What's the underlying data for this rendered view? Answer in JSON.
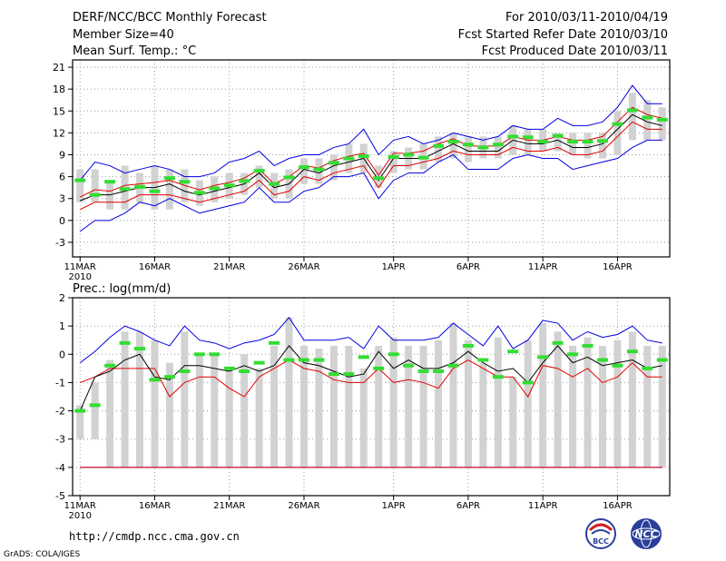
{
  "header": {
    "title": "DERF/NCC/BCC Monthly Forecast",
    "member_size": "Member Size=40",
    "variable": "Mean Surf. Temp.: °C",
    "period": "For 2010/03/11-2010/04/19",
    "started": "Fcst Started Refer Date 2010/03/10",
    "produced": "Fcst Produced Date 2010/03/11"
  },
  "footer": {
    "url": "http://cmdp.ncc.cma.gov.cn",
    "credit": "GrADS: COLA/IGES",
    "logo_left": "BCC",
    "logo_right": "NCC"
  },
  "colors": {
    "box": "#d2d2d2",
    "median": "#000000",
    "spread": "#e00000",
    "extreme": "#0000e0",
    "obs_mark": "#33dd33",
    "grid": "#999999"
  },
  "chart_data": [
    {
      "type": "box-ensemble",
      "title": "Mean Surf. Temp.: °C",
      "ylim": [
        -5,
        22
      ],
      "yticks": [
        -3,
        0,
        3,
        6,
        9,
        12,
        15,
        18,
        21
      ],
      "xtick_days": [
        1,
        6,
        11,
        16,
        22,
        27,
        32,
        37
      ],
      "xtick_labels": [
        "11MAR",
        "16MAR",
        "21MAR",
        "26MAR",
        "1APR",
        "6APR",
        "11APR",
        "16APR"
      ],
      "xyear": "2010",
      "days": [
        1,
        2,
        3,
        4,
        5,
        6,
        7,
        8,
        9,
        10,
        11,
        12,
        13,
        14,
        15,
        16,
        17,
        18,
        19,
        20,
        21,
        22,
        23,
        24,
        25,
        26,
        27,
        28,
        29,
        30,
        31,
        32,
        33,
        34,
        35,
        36,
        37,
        38,
        39,
        40
      ],
      "box_low": [
        2.5,
        2.5,
        1.5,
        1.5,
        2.5,
        1.5,
        1.5,
        2.5,
        2.0,
        2.5,
        3.0,
        3.5,
        4.5,
        3.0,
        3.0,
        5.0,
        5.0,
        5.5,
        6.5,
        6.5,
        4.5,
        6.5,
        7.0,
        7.0,
        8.0,
        8.5,
        8.0,
        8.5,
        8.5,
        9.0,
        9.0,
        9.5,
        9.5,
        9.0,
        8.5,
        8.5,
        9.0,
        11.0,
        11.0,
        11.0
      ],
      "box_high": [
        7.0,
        7.0,
        5.5,
        7.5,
        6.5,
        7.5,
        7.0,
        7.0,
        5.5,
        6.0,
        6.5,
        6.5,
        7.5,
        6.5,
        7.0,
        8.5,
        8.5,
        9.0,
        10.5,
        10.5,
        7.5,
        9.5,
        10.0,
        10.5,
        11.5,
        12.0,
        11.5,
        11.5,
        11.5,
        13.0,
        12.5,
        12.5,
        12.0,
        12.0,
        12.0,
        12.0,
        15.0,
        17.5,
        16.5,
        15.5
      ],
      "median": [
        2.7,
        3.5,
        3.5,
        4.0,
        4.5,
        4.5,
        5.0,
        4.0,
        3.5,
        4.0,
        4.5,
        5.0,
        6.5,
        4.5,
        5.0,
        7.0,
        6.5,
        7.5,
        8.0,
        8.5,
        5.5,
        8.5,
        8.5,
        8.5,
        9.5,
        10.5,
        9.5,
        9.5,
        9.5,
        11.0,
        10.5,
        10.5,
        11.0,
        10.0,
        10.0,
        10.5,
        12.5,
        14.5,
        13.5,
        13.0
      ],
      "upper": [
        3.2,
        4.2,
        4.0,
        4.8,
        5.0,
        5.2,
        5.5,
        4.8,
        4.2,
        4.8,
        5.2,
        5.8,
        7.0,
        5.0,
        6.0,
        7.5,
        7.2,
        8.2,
        8.8,
        9.2,
        6.2,
        9.2,
        9.2,
        9.5,
        10.5,
        11.2,
        10.2,
        10.2,
        10.2,
        11.5,
        11.0,
        11.0,
        11.5,
        11.0,
        11.0,
        11.5,
        13.5,
        15.5,
        14.5,
        14.0
      ],
      "lower": [
        1.5,
        2.5,
        2.5,
        2.5,
        3.5,
        3.5,
        3.5,
        3.0,
        2.5,
        3.0,
        3.5,
        4.0,
        5.5,
        3.5,
        4.0,
        6.0,
        5.5,
        6.5,
        7.0,
        7.5,
        4.5,
        7.5,
        7.5,
        8.0,
        8.5,
        9.5,
        9.0,
        9.0,
        9.0,
        10.0,
        9.5,
        9.5,
        10.0,
        9.0,
        9.0,
        9.5,
        11.5,
        13.5,
        12.5,
        12.5
      ],
      "max": [
        5.5,
        8.0,
        7.5,
        6.5,
        7.0,
        7.5,
        7.0,
        6.0,
        6.0,
        6.5,
        8.0,
        8.5,
        9.5,
        7.5,
        8.5,
        9.0,
        9.0,
        10.0,
        10.5,
        12.5,
        9.0,
        11.0,
        11.5,
        10.5,
        11.0,
        12.0,
        11.5,
        11.0,
        11.5,
        13.0,
        12.5,
        12.5,
        14.0,
        13.0,
        13.0,
        13.5,
        15.5,
        18.5,
        16.0,
        16.0
      ],
      "min": [
        -1.5,
        0.0,
        0.0,
        1.0,
        2.5,
        2.0,
        3.0,
        2.0,
        1.0,
        1.5,
        2.0,
        2.5,
        4.5,
        2.5,
        2.5,
        4.0,
        4.5,
        6.0,
        6.0,
        6.5,
        3.0,
        5.5,
        6.5,
        6.5,
        8.0,
        9.0,
        7.0,
        7.0,
        7.0,
        8.5,
        9.0,
        8.5,
        8.5,
        7.0,
        7.5,
        8.0,
        8.5,
        10.0,
        11.0,
        11.0
      ],
      "obs": [
        5.5,
        3.5,
        5.3,
        4.3,
        4.6,
        4.0,
        5.8,
        5.3,
        3.8,
        4.4,
        4.8,
        5.4,
        6.8,
        5.0,
        5.9,
        7.3,
        7.0,
        7.9,
        8.5,
        8.8,
        5.8,
        8.7,
        9.0,
        8.6,
        10.2,
        10.8,
        10.4,
        10.0,
        10.4,
        11.5,
        11.4,
        10.8,
        11.6,
        10.8,
        10.8,
        10.9,
        13.2,
        15.1,
        14.1,
        13.8
      ]
    },
    {
      "type": "box-ensemble",
      "title": "Prec.: log(mm/d)",
      "ylim": [
        -5,
        2
      ],
      "yticks": [
        -5,
        -4,
        -3,
        -2,
        -1,
        0,
        1,
        2
      ],
      "xtick_days": [
        1,
        6,
        11,
        16,
        22,
        27,
        32,
        37
      ],
      "xtick_labels": [
        "11MAR",
        "16MAR",
        "21MAR",
        "26MAR",
        "1APR",
        "6APR",
        "11APR",
        "16APR"
      ],
      "xyear": "2010",
      "days": [
        1,
        2,
        3,
        4,
        5,
        6,
        7,
        8,
        9,
        10,
        11,
        12,
        13,
        14,
        15,
        16,
        17,
        18,
        19,
        20,
        21,
        22,
        23,
        24,
        25,
        26,
        27,
        28,
        29,
        30,
        31,
        32,
        33,
        34,
        35,
        36,
        37,
        38,
        39,
        40
      ],
      "box_low": [
        -3.0,
        -3.0,
        -4.0,
        -4.0,
        -4.0,
        -4.0,
        -4.0,
        -4.0,
        -4.0,
        -4.0,
        -4.0,
        -4.0,
        -4.0,
        -4.0,
        -4.0,
        -4.0,
        -4.0,
        -4.0,
        -4.0,
        -4.0,
        -4.0,
        -4.0,
        -4.0,
        -4.0,
        -4.0,
        -4.0,
        -4.0,
        -4.0,
        -4.0,
        -4.0,
        -4.0,
        -4.0,
        -4.0,
        -4.0,
        -4.0,
        -4.0,
        -4.0,
        -4.0,
        -4.0,
        -4.0
      ],
      "box_high": [
        -1.8,
        -1.0,
        -0.2,
        0.8,
        0.8,
        0.5,
        -0.3,
        0.8,
        0.0,
        0.0,
        -0.5,
        0.0,
        -0.5,
        0.3,
        1.3,
        0.3,
        0.2,
        0.3,
        0.3,
        -0.5,
        0.3,
        0.6,
        0.3,
        0.3,
        0.5,
        1.1,
        0.5,
        -0.3,
        0.6,
        -0.8,
        0.5,
        1.1,
        0.8,
        0.3,
        0.6,
        0.3,
        0.5,
        0.8,
        0.3,
        0.3
      ],
      "median": [
        -2.0,
        -0.8,
        -0.6,
        -0.2,
        0.0,
        -0.8,
        -0.9,
        -0.4,
        -0.4,
        -0.5,
        -0.6,
        -0.4,
        -0.6,
        -0.4,
        0.3,
        -0.3,
        -0.4,
        -0.6,
        -0.8,
        -0.7,
        0.1,
        -0.5,
        -0.2,
        -0.5,
        -0.5,
        -0.3,
        0.1,
        -0.3,
        -0.6,
        -0.5,
        -1.0,
        -0.3,
        0.3,
        -0.3,
        -0.1,
        -0.4,
        -0.3,
        -0.2,
        -0.5,
        -0.4
      ],
      "upper": [
        -1.5,
        -0.3,
        -0.1,
        -0.2,
        -0.1,
        -0.5,
        -0.8,
        -0.3,
        -0.3,
        -0.3,
        -0.4,
        -0.2,
        -0.2,
        -0.1,
        0.4,
        -0.1,
        -0.2,
        -0.3,
        -0.2,
        -0.3,
        0.1,
        -0.3,
        -0.1,
        -0.3,
        -0.3,
        -0.2,
        0.1,
        -0.3,
        -0.3,
        -0.4,
        -0.4,
        -0.1,
        0.3,
        -0.2,
        0.1,
        -0.2,
        -0.1,
        0.1,
        -0.2,
        -0.2
      ],
      "lower": [
        -2.0,
        -1.5,
        -1.0,
        -0.5,
        -0.3,
        -1.0,
        -1.2,
        -0.8,
        -0.8,
        -0.8,
        -0.9,
        -0.8,
        -0.8,
        -0.5,
        0.0,
        -0.5,
        -0.8,
        -0.9,
        -1.0,
        -0.9,
        -0.2,
        -0.8,
        -0.4,
        -0.8,
        -0.8,
        -0.5,
        -0.1,
        -0.5,
        -0.8,
        -0.8,
        -1.2,
        -0.5,
        0.1,
        -0.5,
        -0.3,
        -0.6,
        -0.5,
        -0.3,
        -0.8,
        -0.8
      ],
      "max": [
        -0.3,
        0.1,
        0.6,
        1.0,
        0.8,
        0.5,
        0.3,
        1.0,
        0.5,
        0.4,
        0.2,
        0.4,
        0.5,
        0.7,
        1.3,
        0.5,
        0.5,
        0.5,
        0.6,
        0.2,
        1.0,
        0.5,
        0.5,
        0.5,
        0.6,
        1.1,
        0.7,
        0.3,
        1.0,
        0.2,
        0.5,
        1.2,
        1.1,
        0.5,
        0.8,
        0.6,
        0.7,
        1.0,
        0.5,
        0.4
      ],
      "min": [
        -4.0,
        -4.0,
        -4.0,
        -4.0,
        -4.0,
        -4.0,
        -4.0,
        -4.0,
        -4.0,
        -4.0,
        -4.0,
        -4.0,
        -4.0,
        -4.0,
        -4.0,
        -4.0,
        -4.0,
        -4.0,
        -4.0,
        -4.0,
        -4.0,
        -4.0,
        -4.0,
        -4.0,
        -4.0,
        -4.0,
        -4.0,
        -4.0,
        -4.0,
        -4.0,
        -4.0,
        -4.0,
        -4.0,
        -4.0,
        -4.0,
        -4.0,
        -4.0,
        -4.0,
        -4.0,
        -4.0
      ],
      "red_upper": [
        -1.0,
        -0.8,
        -0.5,
        -0.5,
        -0.5,
        -0.5,
        -1.5,
        -1.0,
        -0.8,
        -0.8,
        -1.2,
        -1.5,
        -0.8,
        -0.5,
        -0.2,
        -0.5,
        -0.6,
        -0.9,
        -1.0,
        -1.0,
        -0.5,
        -1.0,
        -0.9,
        -1.0,
        -1.2,
        -0.5,
        -0.2,
        -0.5,
        -0.8,
        -0.8,
        -1.5,
        -0.4,
        -0.5,
        -0.8,
        -0.5,
        -1.0,
        -0.8,
        -0.3,
        -0.8,
        -0.8
      ],
      "red_lower": [
        -4.0,
        -4.0,
        -4.0,
        -4.0,
        -4.0,
        -4.0,
        -4.0,
        -4.0,
        -4.0,
        -4.0,
        -4.0,
        -4.0,
        -4.0,
        -4.0,
        -4.0,
        -4.0,
        -4.0,
        -4.0,
        -4.0,
        -4.0,
        -4.0,
        -4.0,
        -4.0,
        -4.0,
        -4.0,
        -4.0,
        -4.0,
        -4.0,
        -4.0,
        -4.0,
        -4.0,
        -4.0,
        -4.0,
        -4.0,
        -4.0,
        -4.0,
        -4.0,
        -4.0,
        -4.0,
        -4.0
      ],
      "obs": [
        -2.0,
        -1.8,
        -0.4,
        0.4,
        0.2,
        -0.9,
        -0.8,
        -0.6,
        0.0,
        0.0,
        -0.5,
        -0.6,
        -0.3,
        0.4,
        -0.2,
        -0.2,
        -0.2,
        -0.7,
        -0.7,
        -0.1,
        -0.5,
        0.0,
        -0.4,
        -0.6,
        -0.6,
        -0.4,
        0.3,
        -0.2,
        -0.8,
        0.1,
        -1.0,
        -0.1,
        0.4,
        0.0,
        0.3,
        -0.2,
        -0.4,
        0.1,
        -0.5,
        -0.2
      ]
    }
  ]
}
